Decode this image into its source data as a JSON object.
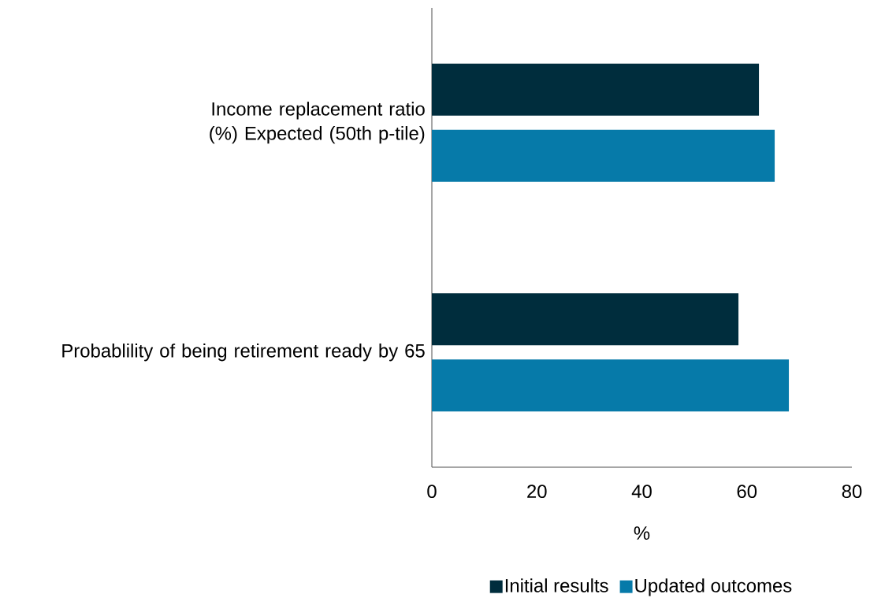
{
  "chart_data": {
    "type": "bar",
    "orientation": "horizontal",
    "categories": [
      "Income replacement ratio (%) Expected (50th p-tile)",
      "Probablility of being retirement ready by 65"
    ],
    "series": [
      {
        "name": "Initial results",
        "color": "#002d3d",
        "values": [
          62.3,
          58.4
        ]
      },
      {
        "name": "Updated outcomes",
        "color": "#067aa9",
        "values": [
          65.3,
          68.0
        ]
      }
    ],
    "xlim": [
      0,
      80
    ],
    "xticks": [
      0,
      20,
      40,
      60,
      80
    ],
    "xlabel": "%",
    "legend": "bottom"
  }
}
